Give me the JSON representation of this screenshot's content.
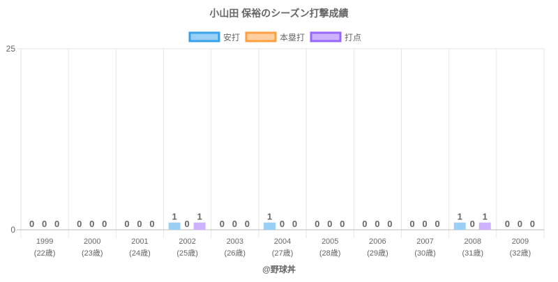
{
  "chart_data": {
    "type": "bar",
    "title": "小山田 保裕のシーズン打撃成績",
    "categories": [
      "1999",
      "2000",
      "2001",
      "2002",
      "2003",
      "2004",
      "2005",
      "2006",
      "2007",
      "2008",
      "2009"
    ],
    "sublabels": [
      "(22歳)",
      "(23歳)",
      "(24歳)",
      "(25歳)",
      "(26歳)",
      "(27歳)",
      "(28歳)",
      "(29歳)",
      "(30歳)",
      "(31歳)",
      "(32歳)"
    ],
    "series": [
      {
        "name": "安打",
        "values": [
          0,
          0,
          0,
          1,
          0,
          1,
          0,
          0,
          0,
          1,
          0
        ],
        "fill": "#9ad0f5",
        "stroke": "#36a2eb"
      },
      {
        "name": "本塁打",
        "values": [
          0,
          0,
          0,
          0,
          0,
          0,
          0,
          0,
          0,
          0,
          0
        ],
        "fill": "#ffcf9f",
        "stroke": "#ff9f40"
      },
      {
        "name": "打点",
        "values": [
          0,
          0,
          0,
          1,
          0,
          0,
          0,
          0,
          0,
          1,
          0
        ],
        "fill": "#ccb2ff",
        "stroke": "#9966ff"
      }
    ],
    "ylim": [
      0,
      25
    ],
    "yticks": [
      "0",
      "25"
    ],
    "legend": "top-center",
    "grid": true,
    "xlabel": "",
    "ylabel": ""
  },
  "footer": "@野球丼"
}
